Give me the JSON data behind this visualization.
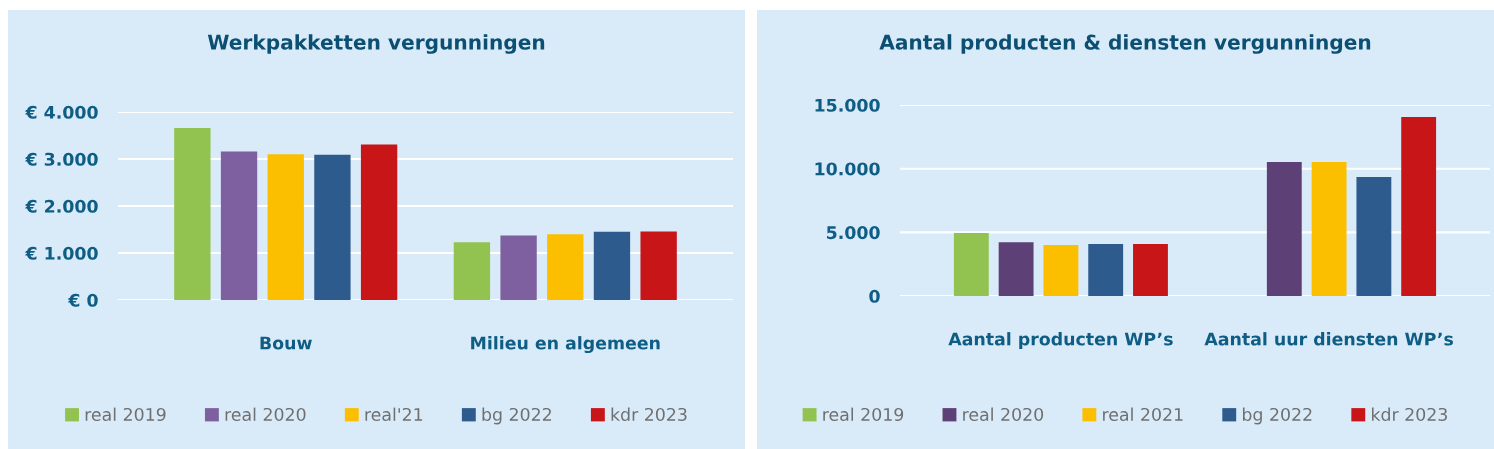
{
  "chart_data": [
    {
      "type": "bar",
      "title": "Werkpakketten vergunningen",
      "categories": [
        "Bouw",
        "Milieu en algemeen"
      ],
      "series": [
        {
          "name": "real 2019",
          "color": "#92c350",
          "values": [
            3660,
            1230
          ]
        },
        {
          "name": "real 2020",
          "color": "#7e60a0",
          "values": [
            3160,
            1370
          ]
        },
        {
          "name": "real'21",
          "color": "#fbbf00",
          "values": [
            3100,
            1400
          ]
        },
        {
          "name": "bg 2022",
          "color": "#2e5b8e",
          "values": [
            3090,
            1450
          ]
        },
        {
          "name": "kdr 2023",
          "color": "#c81517",
          "values": [
            3310,
            1460
          ]
        }
      ],
      "ylim": [
        0,
        4000
      ],
      "yticks": [
        {
          "value": 0,
          "label": "€ 0"
        },
        {
          "value": 1000,
          "label": "€ 1.000"
        },
        {
          "value": 2000,
          "label": "€ 2.000"
        },
        {
          "value": 3000,
          "label": "€ 3.000"
        },
        {
          "value": 4000,
          "label": "€ 4.000"
        }
      ],
      "grid": "y",
      "legend": "bottom"
    },
    {
      "type": "bar",
      "title": "Aantal producten & diensten vergunningen",
      "categories": [
        "Aantal producten WP’s",
        "Aantal uur diensten WP’s"
      ],
      "series": [
        {
          "name": "real 2019",
          "color": "#92c350",
          "values": [
            4950,
            null
          ]
        },
        {
          "name": "real 2020",
          "color": "#5d4076",
          "values": [
            4220,
            10520
          ]
        },
        {
          "name": "real 2021",
          "color": "#fbbf00",
          "values": [
            4010,
            10520
          ]
        },
        {
          "name": "bg 2022",
          "color": "#2e5b8e",
          "values": [
            4080,
            9340
          ]
        },
        {
          "name": "kdr 2023",
          "color": "#c81517",
          "values": [
            4080,
            14050
          ]
        }
      ],
      "ylim": [
        0,
        15000
      ],
      "yticks": [
        {
          "value": 0,
          "label": "0"
        },
        {
          "value": 5000,
          "label": "5.000"
        },
        {
          "value": 10000,
          "label": "10.000"
        },
        {
          "value": 15000,
          "label": "15.000"
        }
      ],
      "grid": "y",
      "legend": "bottom"
    }
  ]
}
